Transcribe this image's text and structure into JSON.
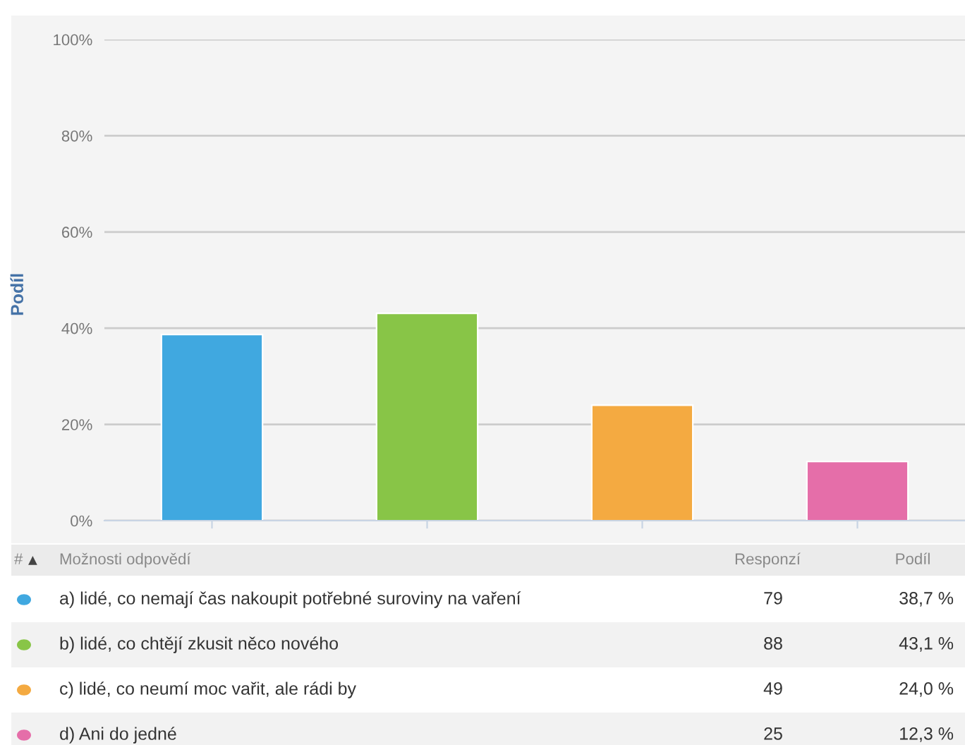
{
  "chart_data": {
    "type": "bar",
    "ylabel": "Podíl",
    "categories": [
      null,
      null,
      null,
      null
    ],
    "values": [
      38.7,
      43.1,
      24.0,
      12.3
    ],
    "colors": [
      "#40a8e0",
      "#88c547",
      "#f4aa41",
      "#e56ea9"
    ],
    "ylim": [
      0,
      100
    ],
    "yticks": [
      {
        "value": 0,
        "label": "0%"
      },
      {
        "value": 20,
        "label": "20%"
      },
      {
        "value": 40,
        "label": "40%"
      },
      {
        "value": 60,
        "label": "60%"
      },
      {
        "value": 80,
        "label": "80%"
      },
      {
        "value": 100,
        "label": "100%"
      }
    ],
    "grid": "y",
    "tick_labels": "y",
    "annotations": [
      "#",
      "▲",
      "Možnosti odpovědí",
      "Responzí",
      "Podíl",
      "a) lidé, co nemají čas nakoupit potřebné suroviny na vaření",
      "79",
      "38,7 %",
      "b) lidé, co chtějí zkusit něco nového",
      "88",
      "43,1 %",
      "c) lidé, co neumí moc vařit, ale rádi by",
      "49",
      "24,0 %",
      "d) Ani do jedné",
      "25",
      "12,3 %"
    ]
  }
}
